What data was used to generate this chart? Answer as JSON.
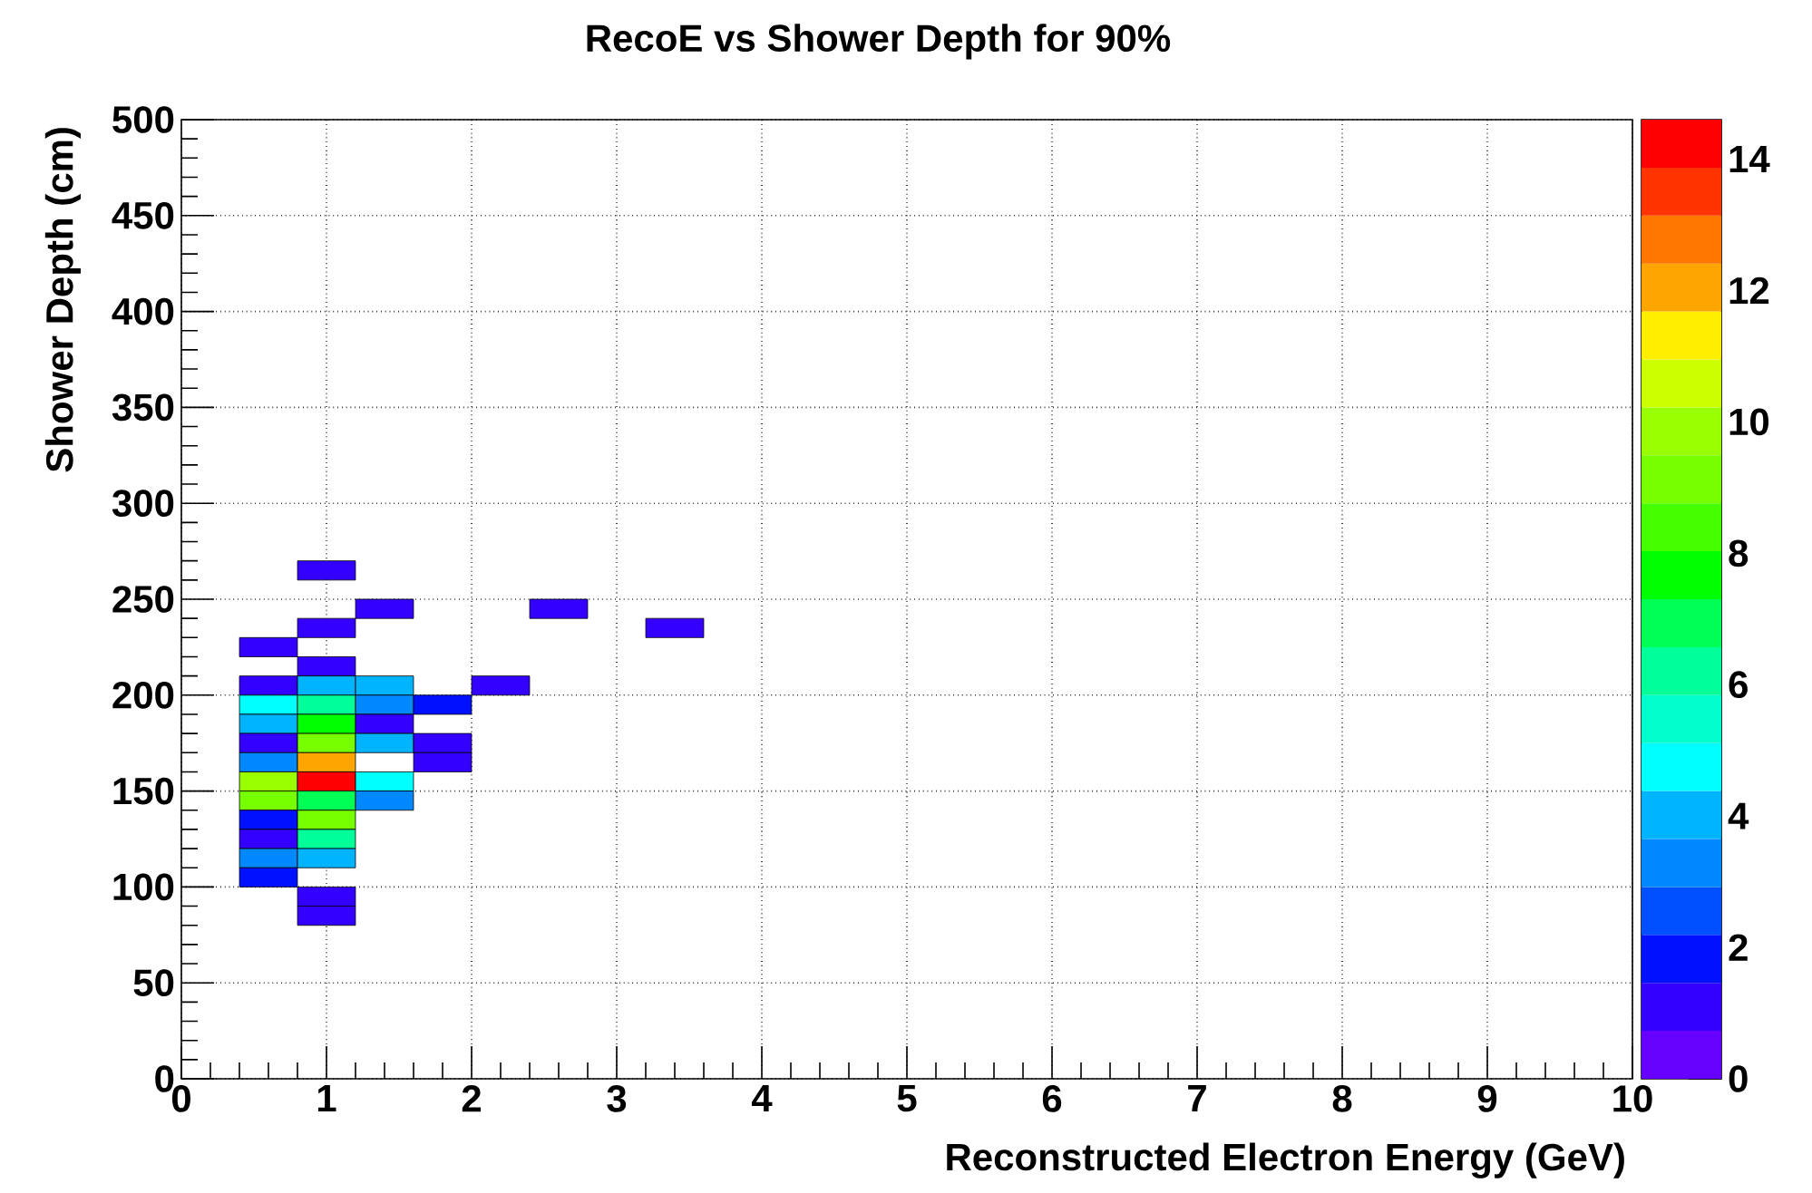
{
  "chart_data": {
    "type": "scatter",
    "title": "RecoE vs Shower Depth for 90%",
    "xlabel": "Reconstructed Electron Energy (GeV)",
    "ylabel": "Shower Depth (cm)",
    "x": [
      1.0,
      1.4,
      2.6,
      1.0,
      3.4,
      0.6,
      1.0,
      0.6,
      1.0,
      1.4,
      2.2,
      0.6,
      1.0,
      1.4,
      1.8,
      0.6,
      1.0,
      1.4,
      0.6,
      1.0,
      1.4,
      1.8,
      0.6,
      1.0,
      1.8,
      0.6,
      1.0,
      1.4,
      0.6,
      1.0,
      1.4,
      0.6,
      1.0,
      0.6,
      1.0,
      0.6,
      1.0,
      0.6,
      1.0,
      1.0
    ],
    "values": [
      265,
      245,
      245,
      235,
      235,
      225,
      215,
      205,
      205,
      205,
      205,
      195,
      195,
      195,
      195,
      185,
      185,
      185,
      175,
      175,
      175,
      175,
      165,
      165,
      165,
      155,
      155,
      155,
      145,
      145,
      145,
      135,
      135,
      125,
      125,
      115,
      115,
      105,
      95,
      85
    ],
    "cvalues": [
      1,
      1,
      1,
      1,
      1,
      1,
      1,
      1,
      4,
      4,
      1,
      5,
      6,
      3,
      2,
      4,
      8,
      1,
      1,
      9,
      4,
      1,
      3,
      12,
      1,
      10,
      14,
      5,
      9,
      7,
      3,
      2,
      9,
      1,
      6,
      3,
      4,
      2,
      1,
      1
    ],
    "marker": "square",
    "xlim": [
      0,
      10
    ],
    "xticks": [
      0,
      1,
      2,
      3,
      4,
      5,
      6,
      7,
      8,
      9,
      10
    ],
    "ylim": [
      0,
      500
    ],
    "yticks": [
      0,
      50,
      100,
      150,
      200,
      250,
      300,
      350,
      400,
      450,
      500
    ],
    "clim": [
      0,
      14.6
    ],
    "cticks": [
      0,
      2,
      4,
      6,
      8,
      10,
      12,
      14
    ],
    "grid": true
  }
}
